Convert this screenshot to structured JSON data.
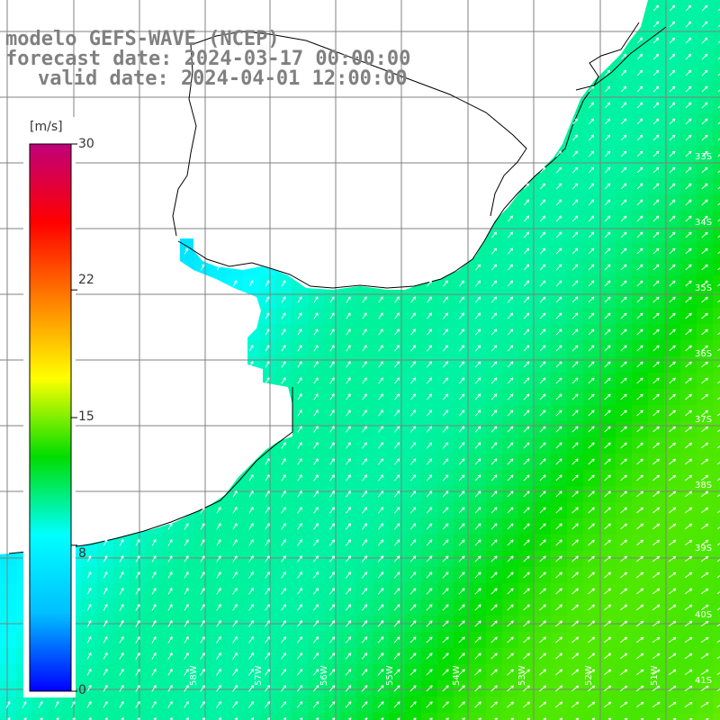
{
  "title": {
    "model": "modelo GEFS-WAVE (NCEP)",
    "forecast": "forecast date: 2024-03-17 00:00:00",
    "valid": "valid date: 2024-04-01 12:00:00"
  },
  "colorbar": {
    "unit": "[m/s]",
    "ticks": [
      "30",
      "22",
      "15",
      "8",
      "0"
    ],
    "min": 0,
    "max": 30,
    "stops": [
      "#0000ff",
      "#00bfff",
      "#00ffff",
      "#00dd00",
      "#ffff00",
      "#ff8000",
      "#ff0000",
      "#c0007a"
    ]
  },
  "colors": {
    "land": "#ffffff",
    "grid": "#808080",
    "coast": "#000000",
    "arrow": "#ffffff"
  },
  "map": {
    "lat_labels": [
      "33S",
      "34S",
      "35S",
      "36S",
      "37S",
      "38S",
      "39S",
      "40S",
      "41S"
    ],
    "lon_labels": [
      "58W",
      "57W",
      "56W",
      "55W",
      "54W",
      "53W",
      "52W",
      "51W"
    ]
  }
}
